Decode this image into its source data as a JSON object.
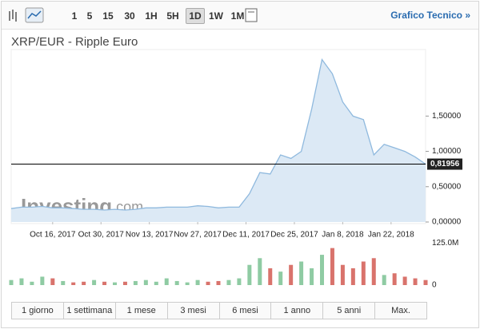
{
  "toolbar": {
    "intervals": [
      "1",
      "5",
      "15",
      "30",
      "1H",
      "5H",
      "1D",
      "1W",
      "1M"
    ],
    "active_index": 6,
    "link": "Grafico Tecnico »"
  },
  "chart_data": {
    "type": "area",
    "title": "XRP/EUR - Ripple Euro",
    "x": [
      "2017-10-04",
      "2017-10-07",
      "2017-10-10",
      "2017-10-13",
      "2017-10-16",
      "2017-10-19",
      "2017-10-22",
      "2017-10-25",
      "2017-10-28",
      "2017-10-31",
      "2017-11-03",
      "2017-11-06",
      "2017-11-09",
      "2017-11-12",
      "2017-11-15",
      "2017-11-18",
      "2017-11-21",
      "2017-11-24",
      "2017-11-27",
      "2017-11-30",
      "2017-12-03",
      "2017-12-06",
      "2017-12-09",
      "2017-12-12",
      "2017-12-15",
      "2017-12-18",
      "2017-12-21",
      "2017-12-24",
      "2017-12-27",
      "2017-12-30",
      "2018-01-02",
      "2018-01-05",
      "2018-01-08",
      "2018-01-11",
      "2018-01-14",
      "2018-01-17",
      "2018-01-20",
      "2018-01-23",
      "2018-01-26",
      "2018-01-29",
      "2018-02-01"
    ],
    "values": [
      0.19,
      0.21,
      0.21,
      0.22,
      0.2,
      0.2,
      0.19,
      0.18,
      0.18,
      0.17,
      0.18,
      0.17,
      0.18,
      0.2,
      0.2,
      0.21,
      0.21,
      0.21,
      0.23,
      0.22,
      0.2,
      0.21,
      0.21,
      0.4,
      0.7,
      0.68,
      0.95,
      0.9,
      1.0,
      1.6,
      2.3,
      2.1,
      1.7,
      1.5,
      1.45,
      0.95,
      1.1,
      1.05,
      1.0,
      0.92,
      0.82
    ],
    "color": "#8fb9de",
    "fill": "#dce9f5",
    "xlim": [
      "2017-10-04",
      "2018-02-01"
    ],
    "xticks": [
      {
        "value": "2017-10-16",
        "label": "Oct 16, 2017"
      },
      {
        "value": "2017-10-30",
        "label": "Oct 30, 2017"
      },
      {
        "value": "2017-11-13",
        "label": "Nov 13, 2017"
      },
      {
        "value": "2017-11-27",
        "label": "Nov 27, 2017"
      },
      {
        "value": "2017-12-11",
        "label": "Dec 11, 2017"
      },
      {
        "value": "2017-12-25",
        "label": "Dec 25, 2017"
      },
      {
        "value": "2018-01-08",
        "label": "Jan 8, 2018"
      },
      {
        "value": "2018-01-22",
        "label": "Jan 22, 2018"
      }
    ],
    "ylim": [
      0,
      2.42
    ],
    "yticks": [
      {
        "value": 0,
        "label": "0,00000"
      },
      {
        "value": 0.5,
        "label": "0,50000"
      },
      {
        "value": 1.0,
        "label": "1,00000"
      },
      {
        "value": 1.5,
        "label": "1,50000"
      }
    ],
    "last_price": {
      "value": 0.81956,
      "label": "0,81956"
    },
    "volume": {
      "values": [
        15,
        20,
        10,
        25,
        20,
        12,
        8,
        10,
        15,
        10,
        8,
        10,
        12,
        15,
        10,
        20,
        12,
        8,
        15,
        10,
        12,
        15,
        20,
        60,
        80,
        50,
        40,
        60,
        70,
        50,
        90,
        110,
        60,
        50,
        70,
        80,
        30,
        35,
        25,
        20,
        15
      ],
      "ylim": [
        0,
        140
      ],
      "yticks": [
        0,
        {
          "value": 125,
          "label": "125.0M"
        }
      ],
      "up_color": "#8fcba3",
      "down_color": "#d9736c"
    }
  },
  "watermark": [
    "Investing",
    ".com"
  ],
  "periods": [
    "1 giorno",
    "1 settimana",
    "1 mese",
    "3 mesi",
    "6 mesi",
    "1 anno",
    "5 anni",
    "Max."
  ]
}
